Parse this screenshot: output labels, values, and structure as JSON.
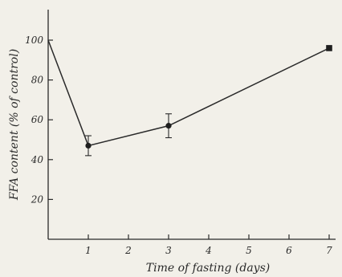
{
  "chart_data": {
    "type": "line",
    "title": "",
    "xlabel": "Time of fasting (days)",
    "ylabel": "FFA content (% of control)",
    "xlim": [
      0,
      7.3
    ],
    "ylim": [
      0,
      115
    ],
    "xticks": [
      1,
      2,
      3,
      4,
      5,
      6,
      7
    ],
    "yticks": [
      20,
      40,
      60,
      80,
      100
    ],
    "grid": false,
    "legend": "none",
    "series": [
      {
        "x": [
          0,
          1,
          3,
          7
        ],
        "y": [
          100,
          47,
          57,
          96
        ],
        "error": [
          null,
          5,
          6,
          null
        ],
        "markers": [
          "none",
          "circle",
          "circle",
          "square"
        ]
      }
    ]
  }
}
